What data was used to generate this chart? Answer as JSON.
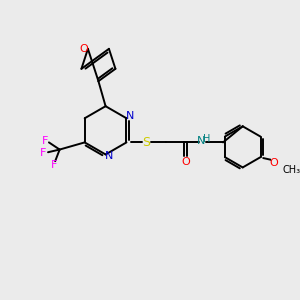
{
  "bg_color": "#ebebeb",
  "bond_color": "#000000",
  "colors": {
    "N": "#0000cc",
    "O": "#ff0000",
    "S": "#cccc00",
    "F": "#ff00ff",
    "NH": "#008080",
    "C": "#000000"
  },
  "figsize": [
    3.0,
    3.0
  ],
  "dpi": 100
}
